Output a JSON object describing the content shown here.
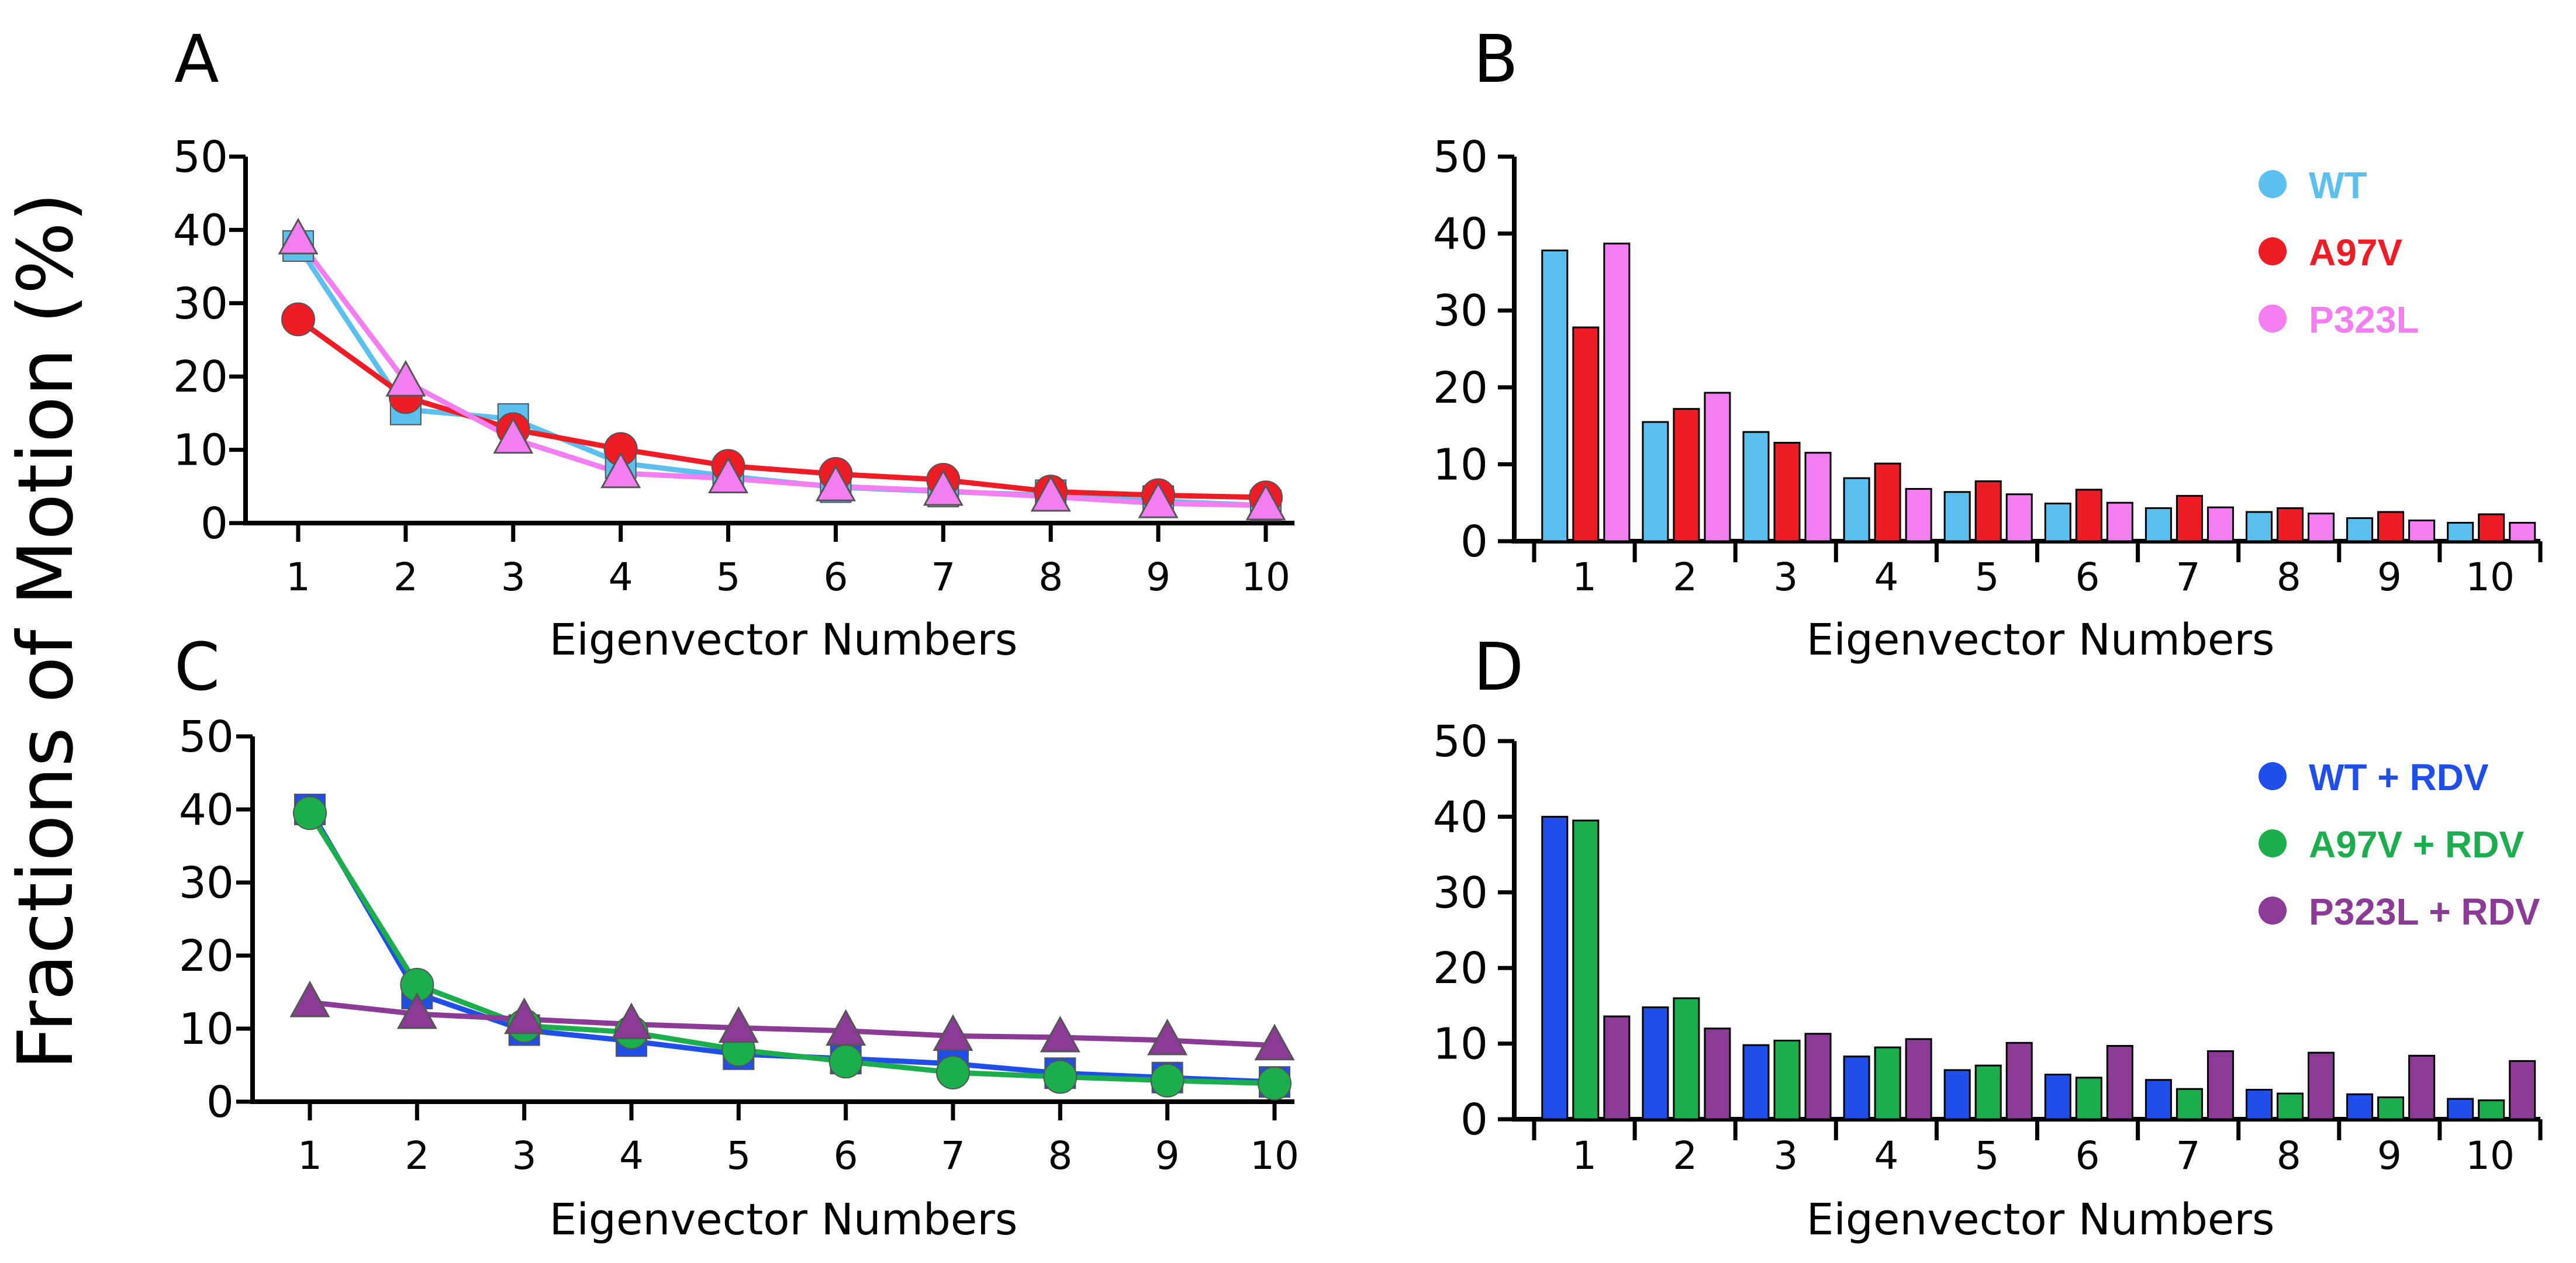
{
  "figure": {
    "shared_ylabel": "Fractions of Motion (%)"
  },
  "chart_data": [
    {
      "panel": "A",
      "type": "line",
      "categories": [
        "1",
        "2",
        "3",
        "4",
        "5",
        "6",
        "7",
        "8",
        "9",
        "10"
      ],
      "xlabel": "Eigenvector Numbers",
      "ylabel": "Fractions of Motion (%)",
      "ylim": [
        0,
        50
      ],
      "yticks": [
        0,
        10,
        20,
        30,
        40,
        50
      ],
      "grid": false,
      "legend": null,
      "series": [
        {
          "name": "WT",
          "color": "#5bc0ee",
          "marker": "square",
          "values": [
            37.8,
            15.5,
            14.2,
            8.2,
            6.4,
            4.9,
            4.3,
            3.8,
            3.0,
            2.4
          ]
        },
        {
          "name": "A97V",
          "color": "#ee1c25",
          "marker": "circle",
          "values": [
            27.8,
            17.2,
            12.8,
            10.1,
            7.8,
            6.7,
            5.9,
            4.3,
            3.8,
            3.5
          ]
        },
        {
          "name": "P323L",
          "color": "#f27ef2",
          "marker": "triangle",
          "values": [
            38.7,
            19.3,
            11.5,
            6.8,
            6.1,
            5.0,
            4.4,
            3.6,
            2.7,
            2.4
          ]
        }
      ]
    },
    {
      "panel": "B",
      "type": "bar",
      "categories": [
        "1",
        "2",
        "3",
        "4",
        "5",
        "6",
        "7",
        "8",
        "9",
        "10"
      ],
      "xlabel": "Eigenvector Numbers",
      "ylabel": "",
      "ylim": [
        0,
        50
      ],
      "yticks": [
        0,
        10,
        20,
        30,
        40,
        50
      ],
      "grid": false,
      "legend": "top-right",
      "series": [
        {
          "name": "WT",
          "color": "#5bc0ee",
          "values": [
            37.8,
            15.5,
            14.2,
            8.2,
            6.4,
            4.9,
            4.3,
            3.8,
            3.0,
            2.4
          ]
        },
        {
          "name": "A97V",
          "color": "#ee1c25",
          "values": [
            27.8,
            17.2,
            12.8,
            10.1,
            7.8,
            6.7,
            5.9,
            4.3,
            3.8,
            3.5
          ]
        },
        {
          "name": "P323L",
          "color": "#f27ef2",
          "values": [
            38.7,
            19.3,
            11.5,
            6.8,
            6.1,
            5.0,
            4.4,
            3.6,
            2.7,
            2.4
          ]
        }
      ]
    },
    {
      "panel": "C",
      "type": "line",
      "categories": [
        "1",
        "2",
        "3",
        "4",
        "5",
        "6",
        "7",
        "8",
        "9",
        "10"
      ],
      "xlabel": "Eigenvector Numbers",
      "ylabel": "Fractions of Motion (%)",
      "ylim": [
        0,
        50
      ],
      "yticks": [
        0,
        10,
        20,
        30,
        40,
        50
      ],
      "grid": false,
      "legend": null,
      "series": [
        {
          "name": "WT + RDV",
          "color": "#1f4fe8",
          "marker": "square",
          "values": [
            40.0,
            14.8,
            9.8,
            8.3,
            6.5,
            5.9,
            5.2,
            3.9,
            3.3,
            2.7
          ]
        },
        {
          "name": "A97V + RDV",
          "color": "#1cae4c",
          "marker": "circle",
          "values": [
            39.5,
            16.0,
            10.4,
            9.5,
            7.1,
            5.5,
            4.0,
            3.4,
            2.9,
            2.5
          ]
        },
        {
          "name": "P323L + RDV",
          "color": "#8b3a96",
          "marker": "triangle",
          "values": [
            13.6,
            12.0,
            11.3,
            10.6,
            10.1,
            9.7,
            9.0,
            8.8,
            8.4,
            7.7
          ]
        }
      ]
    },
    {
      "panel": "D",
      "type": "bar",
      "categories": [
        "1",
        "2",
        "3",
        "4",
        "5",
        "6",
        "7",
        "8",
        "9",
        "10"
      ],
      "xlabel": "Eigenvector Numbers",
      "ylabel": "",
      "ylim": [
        0,
        50
      ],
      "yticks": [
        0,
        10,
        20,
        30,
        40,
        50
      ],
      "grid": false,
      "legend": "top-right",
      "series": [
        {
          "name": "WT + RDV",
          "color": "#1f4fe8",
          "values": [
            40.0,
            14.8,
            9.8,
            8.3,
            6.5,
            5.9,
            5.2,
            3.9,
            3.3,
            2.7
          ]
        },
        {
          "name": "A97V + RDV",
          "color": "#1cae4c",
          "values": [
            39.5,
            16.0,
            10.4,
            9.5,
            7.1,
            5.5,
            4.0,
            3.4,
            2.9,
            2.5
          ]
        },
        {
          "name": "P323L + RDV",
          "color": "#8b3a96",
          "values": [
            13.6,
            12.0,
            11.3,
            10.6,
            10.1,
            9.7,
            9.0,
            8.8,
            8.4,
            7.7
          ]
        }
      ]
    }
  ]
}
